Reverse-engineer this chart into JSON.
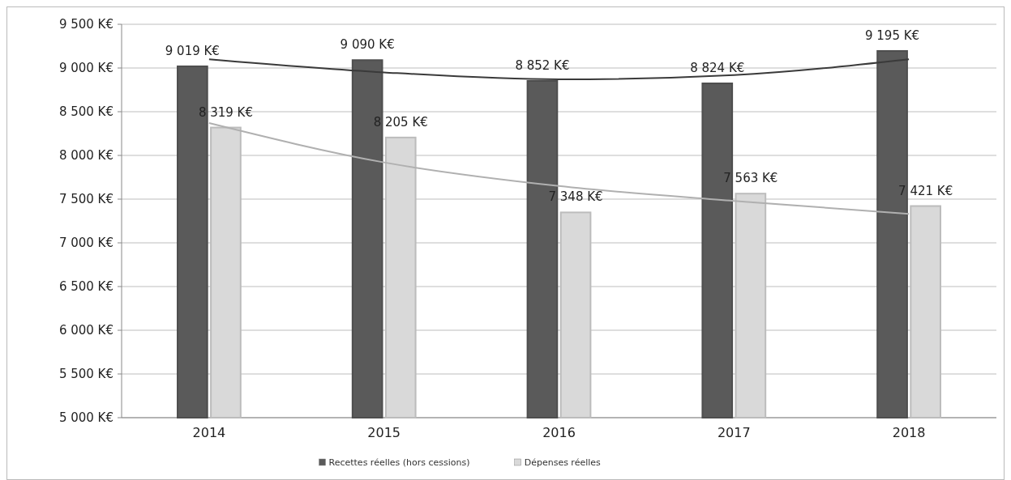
{
  "chart_data": {
    "type": "bar",
    "categories": [
      "2014",
      "2015",
      "2016",
      "2017",
      "2018"
    ],
    "series": [
      {
        "name": "Recettes réelles (hors cessions)",
        "color": "#5a5a5a",
        "values": [
          9019,
          9090,
          8852,
          8824,
          9195
        ],
        "value_labels": [
          "9 019 K€",
          "9 090 K€",
          "8 852 K€",
          "8 824 K€",
          "9 195 K€"
        ]
      },
      {
        "name": "Dépenses réelles",
        "color": "#d9d9d9",
        "values": [
          8319,
          8205,
          7348,
          7563,
          7421
        ],
        "value_labels": [
          "8 319 K€",
          "8 205 K€",
          "7 348 K€",
          "7 563 K€",
          "7 421 K€"
        ]
      },
      {
        "type": "line",
        "color": "#3a3a3a",
        "values": [
          9100,
          8950,
          8870,
          8920,
          9100
        ]
      },
      {
        "type": "line",
        "color": "#b0b0b0",
        "values": [
          8370,
          7920,
          7650,
          7480,
          7330
        ]
      }
    ],
    "ylim": [
      5000,
      9500
    ],
    "yticks": [
      {
        "value": 5000,
        "label": "5 000 K€"
      },
      {
        "value": 5500,
        "label": "5 500 K€"
      },
      {
        "value": 6000,
        "label": "6 000 K€"
      },
      {
        "value": 6500,
        "label": "6 500 K€"
      },
      {
        "value": 7000,
        "label": "7 000 K€"
      },
      {
        "value": 7500,
        "label": "7 500 K€"
      },
      {
        "value": 8000,
        "label": "8 000 K€"
      },
      {
        "value": 8500,
        "label": "8 500 K€"
      },
      {
        "value": 9000,
        "label": "9 000 K€"
      },
      {
        "value": 9500,
        "label": "9 500 K€"
      }
    ],
    "grid": "y",
    "legend": "bottom",
    "marker": "none",
    "line_style": "solid"
  }
}
